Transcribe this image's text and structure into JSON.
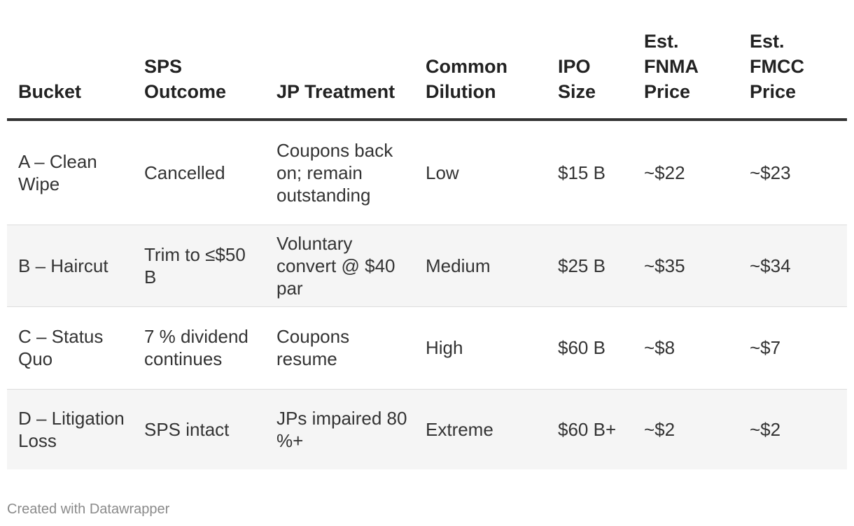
{
  "chart_data": {
    "type": "table",
    "columns": [
      "Bucket",
      "SPS Outcome",
      "JP Treatment",
      "Common Dilution",
      "IPO Size",
      "Est. FNMA Price",
      "Est. FMCC Price"
    ],
    "rows": [
      [
        "A – Clean Wipe",
        "Cancelled",
        "Coupons back on; remain outstanding",
        "Low",
        "$15 B",
        "~$22",
        "~$23"
      ],
      [
        "B – Haircut",
        "Trim to ≤$50 B",
        "Voluntary convert @ $40 par",
        "Medium",
        "$25 B",
        "~$35",
        "~$34"
      ],
      [
        "C – Status Quo",
        "7 % dividend continues",
        "Coupons resume",
        "High",
        "$60 B",
        "~$8",
        "~$7"
      ],
      [
        "D – Litigation Loss",
        "SPS intact",
        "JPs impaired 80 %+",
        "Extreme",
        "$60 B+",
        "~$2",
        "~$2"
      ]
    ]
  },
  "footer": {
    "credit": "Created with Datawrapper"
  }
}
